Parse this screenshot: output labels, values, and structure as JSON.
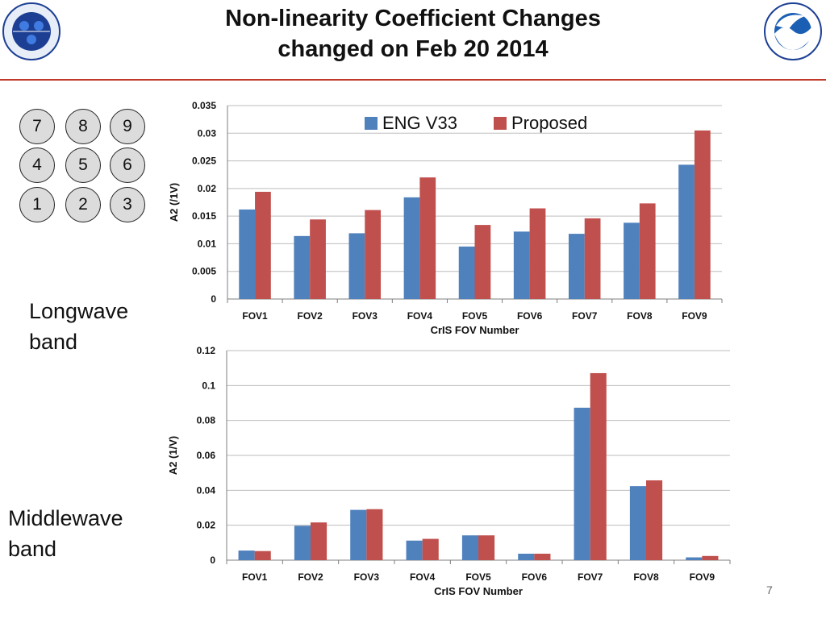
{
  "header": {
    "title_line1": "Non-linearity Coefficient Changes",
    "title_line2": "changed on Feb 20 2014",
    "left_logo": "noaa-nesdis-star-logo",
    "right_logo": "noaa-logo"
  },
  "fov_grid": [
    [
      "7",
      "8",
      "9"
    ],
    [
      "4",
      "5",
      "6"
    ],
    [
      "1",
      "2",
      "3"
    ]
  ],
  "bands": {
    "longwave": "Longwave band",
    "middlewave": "Middlewave band"
  },
  "page_number": "7",
  "colors": {
    "eng": "#4f81bd",
    "proposed": "#c0504d"
  },
  "chart_data": [
    {
      "type": "bar",
      "categories": [
        "FOV1",
        "FOV2",
        "FOV3",
        "FOV4",
        "FOV5",
        "FOV6",
        "FOV7",
        "FOV8",
        "FOV9"
      ],
      "series": [
        {
          "name": "ENG V33",
          "values": [
            0.0162,
            0.0114,
            0.0119,
            0.0184,
            0.0095,
            0.0122,
            0.0118,
            0.0138,
            0.0243
          ]
        },
        {
          "name": "Proposed",
          "values": [
            0.0194,
            0.0144,
            0.0161,
            0.022,
            0.0134,
            0.0164,
            0.0146,
            0.0173,
            0.0305
          ]
        }
      ],
      "xlabel": "CrIS FOV Number",
      "ylabel": "A2   (/1V)",
      "ylim": [
        0,
        0.035
      ],
      "yticks": [
        "0",
        "0.005",
        "0.01",
        "0.015",
        "0.02",
        "0.025",
        "0.03",
        "0.035"
      ],
      "grid": true,
      "legend": "top"
    },
    {
      "type": "bar",
      "categories": [
        "FOV1",
        "FOV2",
        "FOV3",
        "FOV4",
        "FOV5",
        "FOV6",
        "FOV7",
        "FOV8",
        "FOV9"
      ],
      "series": [
        {
          "name": "ENG V33",
          "values": [
            0.0055,
            0.0197,
            0.0288,
            0.0112,
            0.0142,
            0.0037,
            0.0873,
            0.0424,
            0.0016
          ]
        },
        {
          "name": "Proposed",
          "values": [
            0.0052,
            0.0216,
            0.0292,
            0.0122,
            0.0142,
            0.0037,
            0.1071,
            0.0457,
            0.0024
          ]
        }
      ],
      "xlabel": "CrIS FOV Number",
      "ylabel": "A2     (1/V)",
      "ylim": [
        0,
        0.12
      ],
      "yticks": [
        "0",
        "0.02",
        "0.04",
        "0.06",
        "0.08",
        "0.1",
        "0.12"
      ],
      "grid": true,
      "legend": "none"
    }
  ]
}
